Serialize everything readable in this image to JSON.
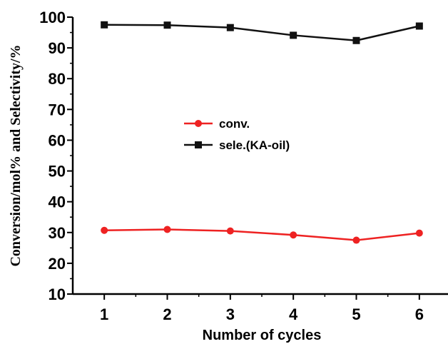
{
  "chart_data": {
    "type": "line",
    "xlabel": "Number of cycles",
    "ylabel": "Conversion/mol% and Selectivity/%",
    "x": [
      1,
      2,
      3,
      4,
      5,
      6
    ],
    "xticks": [
      "1",
      "2",
      "3",
      "4",
      "5",
      "6"
    ],
    "xlim": [
      0.5,
      6.5
    ],
    "ylim": [
      10,
      100
    ],
    "yticks": [
      "10",
      "20",
      "30",
      "40",
      "50",
      "60",
      "70",
      "80",
      "90",
      "100"
    ],
    "grid": false,
    "legend_position": "center-left",
    "series": [
      {
        "name": "conv.",
        "color": "#ee2222",
        "marker": "circle",
        "values": [
          30.7,
          31.0,
          30.5,
          29.2,
          27.5,
          29.8
        ]
      },
      {
        "name": "sele.(KA-oil)",
        "color": "#111111",
        "marker": "square",
        "values": [
          97.5,
          97.4,
          96.6,
          94.1,
          92.4,
          97.1
        ]
      }
    ]
  }
}
